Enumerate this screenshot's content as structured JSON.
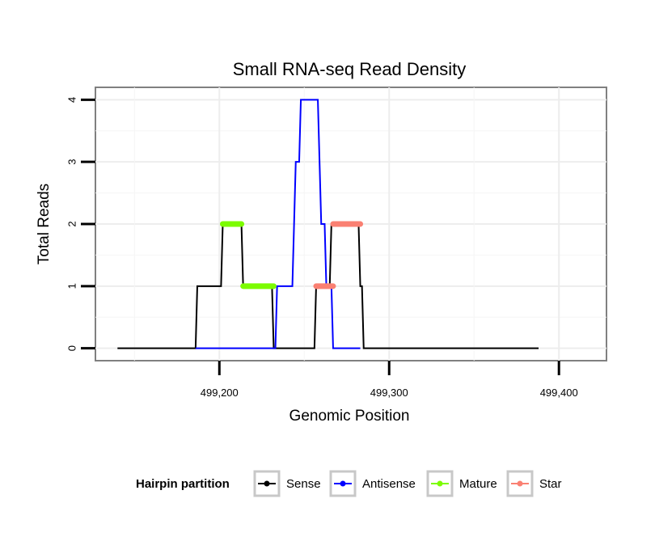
{
  "chart_data": {
    "type": "line",
    "title": "Small RNA-seq Read Density",
    "xlabel": "Genomic Position",
    "ylabel": "Total Reads",
    "xlim": [
      499127,
      499428
    ],
    "ylim": [
      -0.2,
      4.2
    ],
    "x_ticks": [
      499200,
      499300,
      499400
    ],
    "x_tick_labels": [
      "499,200",
      "499,300",
      "499,400"
    ],
    "y_ticks": [
      0,
      1,
      2,
      3,
      4
    ],
    "y_tick_labels": [
      "0",
      "1",
      "2",
      "3",
      "4"
    ],
    "grid": true,
    "legend_position": "bottom",
    "legend_title": "Hairpin partition",
    "series": [
      {
        "name": "Sense",
        "color": "#000000",
        "width": 2,
        "points": [
          [
            499140,
            0
          ],
          [
            499186,
            0
          ],
          [
            499187,
            1
          ],
          [
            499201,
            1
          ],
          [
            499202,
            2
          ],
          [
            499213,
            2
          ],
          [
            499214,
            1
          ],
          [
            499231,
            1
          ],
          [
            499232,
            0
          ],
          [
            499256,
            0
          ],
          [
            499257,
            1
          ],
          [
            499265,
            1
          ],
          [
            499266,
            2
          ],
          [
            499282,
            2
          ],
          [
            499283,
            1
          ],
          [
            499284,
            1
          ],
          [
            499285,
            0
          ],
          [
            499388,
            0
          ]
        ]
      },
      {
        "name": "Antisense",
        "color": "#0000ff",
        "width": 2,
        "points": [
          [
            499186,
            0
          ],
          [
            499233,
            0
          ],
          [
            499234,
            1
          ],
          [
            499243,
            1
          ],
          [
            499244,
            2
          ],
          [
            499245,
            3
          ],
          [
            499247,
            3
          ],
          [
            499248,
            4
          ],
          [
            499258,
            4
          ],
          [
            499259,
            3
          ],
          [
            499260,
            2
          ],
          [
            499262,
            2
          ],
          [
            499263,
            1
          ],
          [
            499266,
            1
          ],
          [
            499267,
            0
          ],
          [
            499283,
            0
          ]
        ]
      },
      {
        "name": "Mature",
        "color": "#7cfc00",
        "width": 7,
        "points": [
          [
            499202,
            2
          ],
          [
            499213,
            2
          ],
          null,
          [
            499214,
            1
          ],
          [
            499232,
            1
          ]
        ]
      },
      {
        "name": "Star",
        "color": "#fa8072",
        "width": 7,
        "points": [
          [
            499257,
            1
          ],
          [
            499267,
            1
          ],
          null,
          [
            499267,
            2
          ],
          [
            499283,
            2
          ]
        ]
      }
    ]
  }
}
